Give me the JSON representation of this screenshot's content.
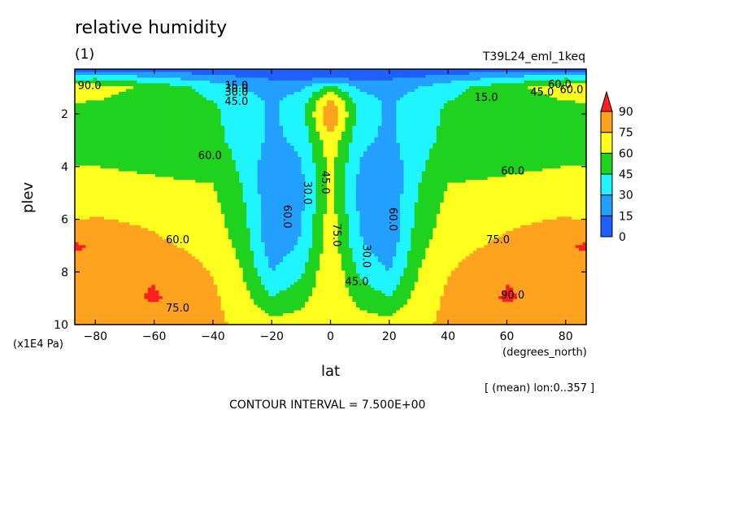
{
  "title": "relative humidity",
  "subtitle": "(1)",
  "run_label": "T39L24_eml_1keq",
  "y_units": "(x1E4 Pa)",
  "x_units": "(degrees_north)",
  "mean_note": "[ (mean) lon:0..357 ]",
  "contour_interval": "CONTOUR INTERVAL = 7.500E+00",
  "chart_data": {
    "type": "heatmap",
    "xlabel": "lat",
    "ylabel": "plev",
    "xlim": [
      -87,
      87
    ],
    "ylim": [
      0.3,
      10
    ],
    "y_inverted": true,
    "x_ticks": [
      -80,
      -60,
      -40,
      -20,
      0,
      20,
      40,
      60,
      80
    ],
    "x_tick_labels": [
      "−80",
      "−60",
      "−40",
      "−20",
      "0",
      "20",
      "40",
      "60",
      "80"
    ],
    "y_ticks": [
      2,
      4,
      6,
      8,
      10
    ],
    "y_tick_labels": [
      "2",
      "4",
      "6",
      "8",
      "10"
    ],
    "levels": [
      0,
      15,
      30,
      45,
      60,
      75,
      90
    ],
    "level_labels": [
      "0",
      "15",
      "30",
      "45",
      "60",
      "75",
      "90"
    ],
    "colors": [
      "#1f5fff",
      "#23a0ff",
      "#1ff5ff",
      "#1fd21f",
      "#ffff1f",
      "#ffa31f",
      "#ff1f1f"
    ],
    "contour_labels": [
      "15.0",
      "30.0",
      "45.0",
      "60.0",
      "60.0",
      "60.0",
      "30.0",
      "45.0",
      "60.0",
      "75.0",
      "30.0",
      "45.0",
      "60.0",
      "75.0",
      "75.0",
      "90.0",
      "90.0",
      "60.0",
      "45.0",
      "15.0",
      "30.0",
      "60.0"
    ],
    "field_sketch": {
      "description_units": "relative humidity %",
      "lat": [
        -87,
        -80,
        -60,
        -40,
        -30,
        -20,
        -10,
        0,
        10,
        20,
        30,
        40,
        60,
        80,
        87
      ],
      "plev": [
        0.3,
        0.6,
        1,
        1.5,
        2,
        3,
        4,
        5,
        6,
        7,
        8,
        9,
        10
      ],
      "approx_values": [
        [
          5,
          5,
          5,
          5,
          5,
          5,
          5,
          5,
          5,
          5,
          5,
          5,
          5,
          5,
          5
        ],
        [
          35,
          40,
          30,
          20,
          15,
          12,
          10,
          10,
          10,
          12,
          15,
          20,
          30,
          40,
          35
        ],
        [
          70,
          68,
          55,
          40,
          30,
          25,
          28,
          50,
          28,
          25,
          30,
          40,
          55,
          68,
          70
        ],
        [
          62,
          60,
          52,
          45,
          35,
          28,
          35,
          80,
          35,
          28,
          35,
          45,
          52,
          60,
          62
        ],
        [
          50,
          50,
          50,
          48,
          38,
          28,
          38,
          92,
          38,
          28,
          38,
          48,
          50,
          50,
          50
        ],
        [
          52,
          52,
          52,
          48,
          40,
          26,
          34,
          72,
          34,
          26,
          40,
          48,
          52,
          52,
          52
        ],
        [
          60,
          60,
          58,
          56,
          42,
          20,
          28,
          64,
          28,
          20,
          42,
          56,
          58,
          60,
          60
        ],
        [
          66,
          66,
          64,
          62,
          46,
          18,
          26,
          64,
          26,
          18,
          46,
          62,
          64,
          66,
          66
        ],
        [
          74,
          76,
          72,
          66,
          50,
          18,
          28,
          68,
          28,
          18,
          50,
          66,
          72,
          76,
          74
        ],
        [
          92,
          88,
          78,
          70,
          55,
          20,
          32,
          70,
          32,
          20,
          55,
          70,
          78,
          88,
          92
        ],
        [
          84,
          88,
          88,
          74,
          60,
          30,
          42,
          74,
          42,
          30,
          60,
          74,
          88,
          88,
          84
        ],
        [
          78,
          82,
          92,
          78,
          66,
          46,
          54,
          74,
          54,
          46,
          66,
          78,
          92,
          82,
          78
        ],
        [
          76,
          78,
          82,
          78,
          72,
          66,
          68,
          74,
          68,
          66,
          72,
          78,
          82,
          78,
          76
        ]
      ]
    }
  }
}
